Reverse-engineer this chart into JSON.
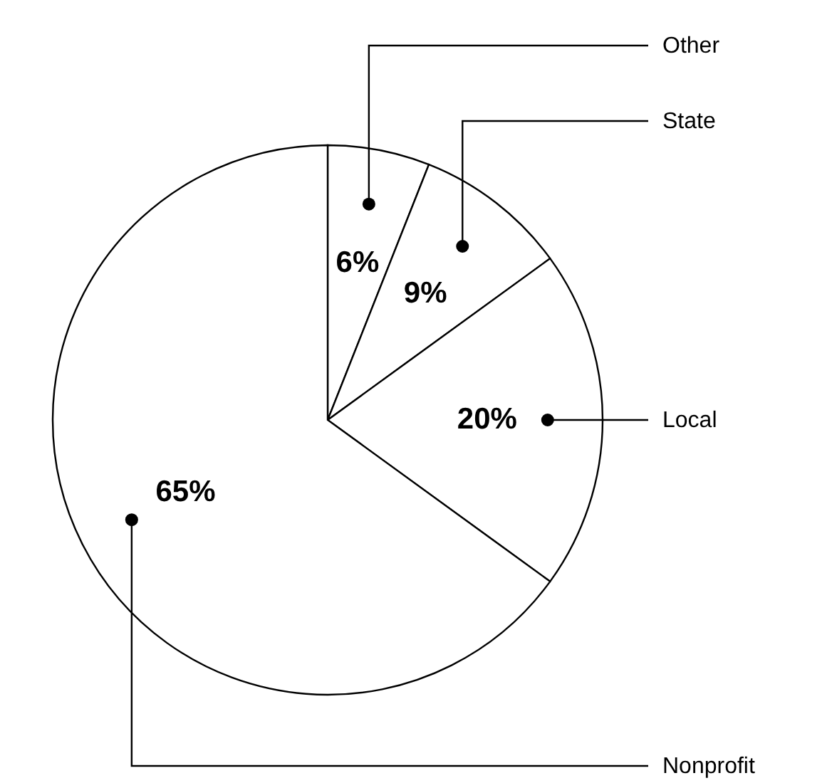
{
  "chart_data": {
    "type": "pie",
    "categories": [
      "Other",
      "State",
      "Local",
      "Nonprofit"
    ],
    "values": [
      6,
      9,
      20,
      65
    ],
    "colors": [
      "#ffffff",
      "#ffffff",
      "#ffffff",
      "#ffffff"
    ],
    "value_labels": [
      "6%",
      "9%",
      "20%",
      "65%"
    ]
  }
}
